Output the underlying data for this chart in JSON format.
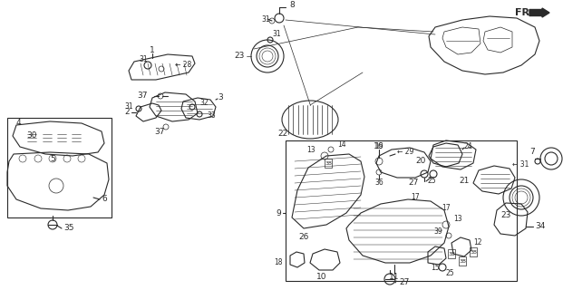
{
  "bg_color": "#f5f5f0",
  "line_color": "#2a2a2a",
  "fig_width": 6.21,
  "fig_height": 3.2,
  "dpi": 100
}
